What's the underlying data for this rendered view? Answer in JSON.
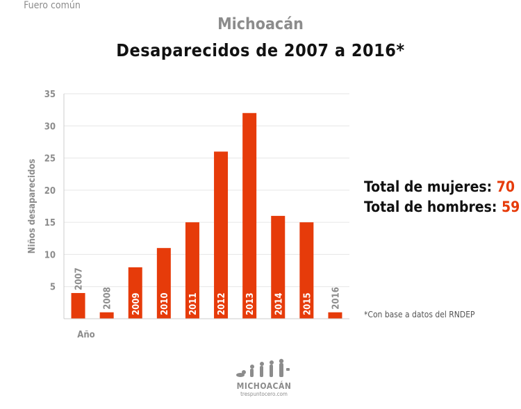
{
  "header": {
    "region": "Michoacán",
    "title": "Desaparecidos de 2007 a 2016*",
    "subtitle": "Fuero común"
  },
  "totals": {
    "women_label": "Total de mujeres:",
    "women_value": "70",
    "men_label": "Total de hombres:",
    "men_value": "59"
  },
  "footnote": "*Con base a datos del RNDEP",
  "logo": {
    "name": "MICHOACÁN",
    "site": "trespuntocero.com",
    "icon": "evolution-silhouettes-icon"
  },
  "colors": {
    "bar": "#e63b0a",
    "accent": "#e63b0a",
    "axis_text": "#8c8c8c",
    "grid": "#e6e6e6"
  },
  "chart_data": {
    "type": "bar",
    "categories": [
      "2007",
      "2008",
      "2009",
      "2010",
      "2011",
      "2012",
      "2013",
      "2014",
      "2015",
      "2016"
    ],
    "values": [
      4,
      1,
      8,
      11,
      15,
      26,
      32,
      16,
      15,
      1
    ],
    "title": "Desaparecidos de 2007 a 2016*",
    "subtitle": "Fuero común",
    "xlabel": "Año",
    "ylabel": "Niños desaparecidos",
    "ylim": [
      0,
      35
    ],
    "yticks": [
      5,
      10,
      15,
      20,
      25,
      30,
      35
    ],
    "grid": true,
    "legend": "none"
  }
}
